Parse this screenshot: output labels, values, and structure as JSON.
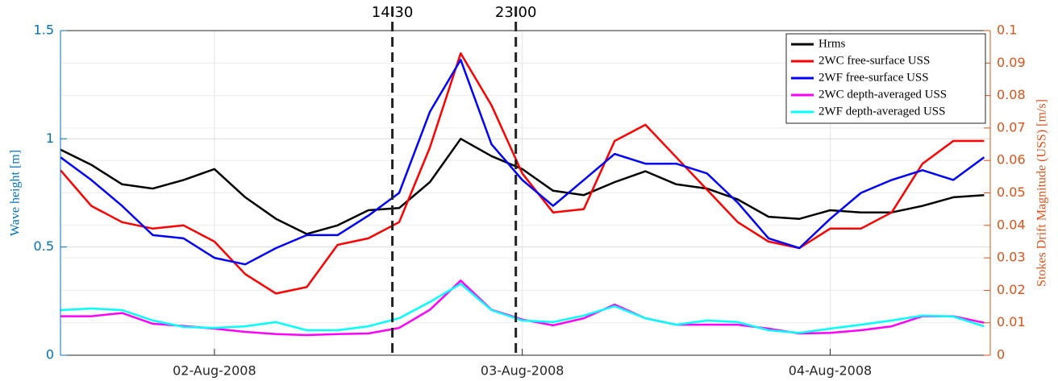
{
  "chart_data": {
    "type": "line",
    "ylabel": "Wave height [m]",
    "y2label": "Stokes Drift Magnitude (USS) [m/s]",
    "xlim": [
      1.5,
      4.52
    ],
    "xticks": [
      {
        "value": 2,
        "label": "02-Aug-2008"
      },
      {
        "value": 3,
        "label": "03-Aug-2008"
      },
      {
        "value": 4,
        "label": "04-Aug-2008"
      }
    ],
    "ylim": [
      0,
      1.5
    ],
    "yticks": [
      0,
      0.5,
      1,
      1.5
    ],
    "y2lim": [
      0,
      0.1
    ],
    "y2ticks": [
      0,
      0.01,
      0.02,
      0.03,
      0.04,
      0.05,
      0.06,
      0.07,
      0.08,
      0.09,
      0.1
    ],
    "grid": true,
    "legend": "upper right",
    "left_axis_color": "#0072bd",
    "right_axis_color": "#d95319",
    "annotations": [
      {
        "label": "14.30",
        "x": 2.578
      },
      {
        "label": "23.00",
        "x": 2.979
      }
    ],
    "x": [
      1.5,
      1.6,
      1.7,
      1.8,
      1.9,
      2.0,
      2.1,
      2.2,
      2.3,
      2.4,
      2.5,
      2.6,
      2.7,
      2.8,
      2.9,
      3.0,
      3.1,
      3.2,
      3.3,
      3.4,
      3.5,
      3.6,
      3.7,
      3.8,
      3.9,
      4.0,
      4.1,
      4.2,
      4.3,
      4.4,
      4.5
    ],
    "series": [
      {
        "name": "Hrms",
        "color": "#000000",
        "values": [
          0.95,
          0.88,
          0.79,
          0.77,
          0.81,
          0.86,
          0.73,
          0.63,
          0.56,
          0.6,
          0.67,
          0.68,
          0.8,
          1.0,
          0.92,
          0.86,
          0.76,
          0.74,
          0.8,
          0.85,
          0.79,
          0.77,
          0.72,
          0.64,
          0.63,
          0.67,
          0.66,
          0.66,
          0.69,
          0.73,
          0.74
        ]
      },
      {
        "name": "2WC free-surface USS",
        "color": "#ff0000",
        "axis": "y2",
        "values": [
          0.057,
          0.046,
          0.041,
          0.039,
          0.04,
          0.035,
          0.025,
          0.019,
          0.021,
          0.034,
          0.036,
          0.041,
          0.064,
          0.093,
          0.077,
          0.056,
          0.044,
          0.045,
          0.066,
          0.071,
          0.061,
          0.051,
          0.041,
          0.035,
          0.033,
          0.039,
          0.039,
          0.044,
          0.059,
          0.066,
          0.066
        ]
      },
      {
        "name": "2WF free-surface USS",
        "color": "#0000ff",
        "axis": "y2",
        "values": [
          0.061,
          0.054,
          0.046,
          0.037,
          0.036,
          0.03,
          0.028,
          0.033,
          0.037,
          0.037,
          0.043,
          0.05,
          0.075,
          0.091,
          0.065,
          0.054,
          0.046,
          0.054,
          0.062,
          0.059,
          0.059,
          0.056,
          0.047,
          0.036,
          0.033,
          0.042,
          0.05,
          0.054,
          0.057,
          0.054,
          0.061
        ]
      },
      {
        "name": "2WC depth-averaged USS",
        "color": "#ff00ff",
        "axis": "y2",
        "values": [
          0.012,
          0.012,
          0.013,
          0.0097,
          0.009,
          0.0082,
          0.0072,
          0.0065,
          0.0062,
          0.0065,
          0.0067,
          0.0084,
          0.014,
          0.023,
          0.014,
          0.011,
          0.0092,
          0.0114,
          0.0156,
          0.0114,
          0.0094,
          0.0094,
          0.0094,
          0.0082,
          0.0067,
          0.0069,
          0.0077,
          0.0089,
          0.012,
          0.012,
          0.01
        ]
      },
      {
        "name": "2WF depth-averaged USS",
        "color": "#00ffff",
        "axis": "y2",
        "values": [
          0.0139,
          0.0144,
          0.0139,
          0.0107,
          0.0087,
          0.0084,
          0.0089,
          0.0102,
          0.0077,
          0.0077,
          0.0089,
          0.0114,
          0.0164,
          0.022,
          0.0139,
          0.0107,
          0.0102,
          0.0122,
          0.0151,
          0.0114,
          0.0094,
          0.0107,
          0.0102,
          0.0077,
          0.0069,
          0.0082,
          0.0094,
          0.0107,
          0.0122,
          0.0119,
          0.0089
        ]
      }
    ]
  }
}
